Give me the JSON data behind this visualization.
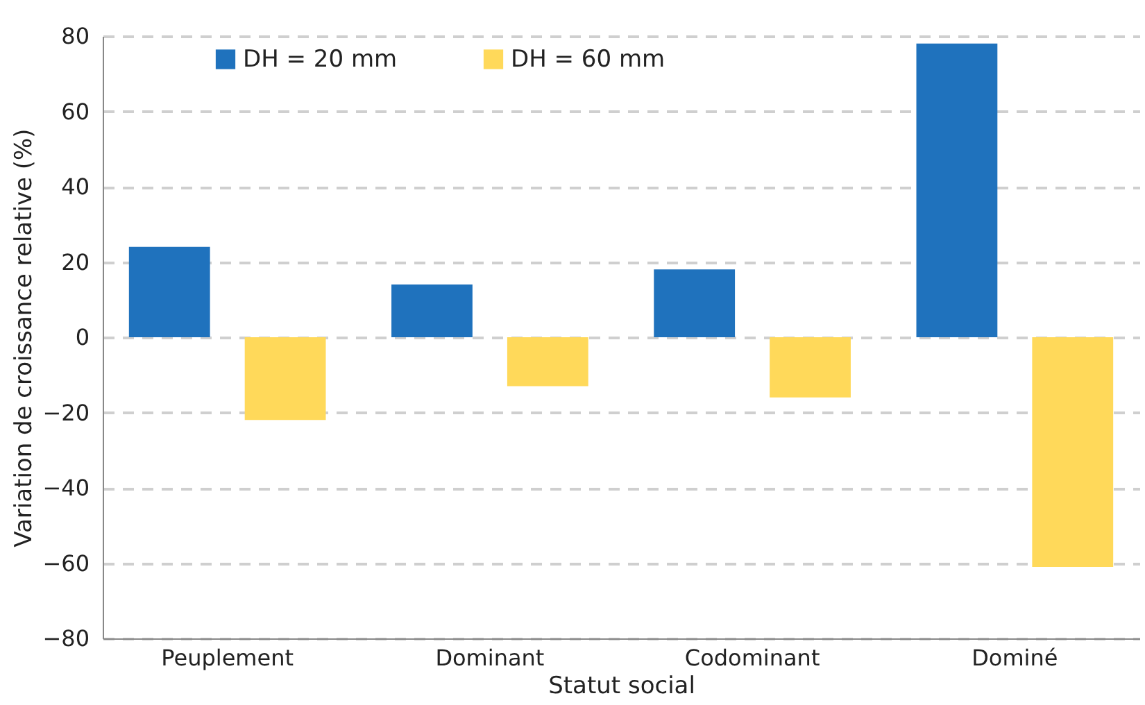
{
  "chart_data": {
    "type": "bar",
    "xlabel": "Statut social",
    "ylabel": "Variation de croissance relative (%)",
    "categories": [
      "Peuplement",
      "Dominant",
      "Codominant",
      "Dominé"
    ],
    "series": [
      {
        "name": "DH = 20 mm",
        "color": "#1f72bd",
        "values": [
          24,
          14,
          18,
          78
        ]
      },
      {
        "name": "DH = 60 mm",
        "color": "#ffd95a",
        "values": [
          -22,
          -13,
          -16,
          -61
        ]
      }
    ],
    "ylim": [
      -80,
      80
    ],
    "yticks": [
      {
        "value": -80,
        "label": "−80"
      },
      {
        "value": -60,
        "label": "−60"
      },
      {
        "value": -40,
        "label": "−40"
      },
      {
        "value": -20,
        "label": "−20"
      },
      0,
      20,
      40,
      60,
      80
    ],
    "grid": "y",
    "legend": "top"
  }
}
